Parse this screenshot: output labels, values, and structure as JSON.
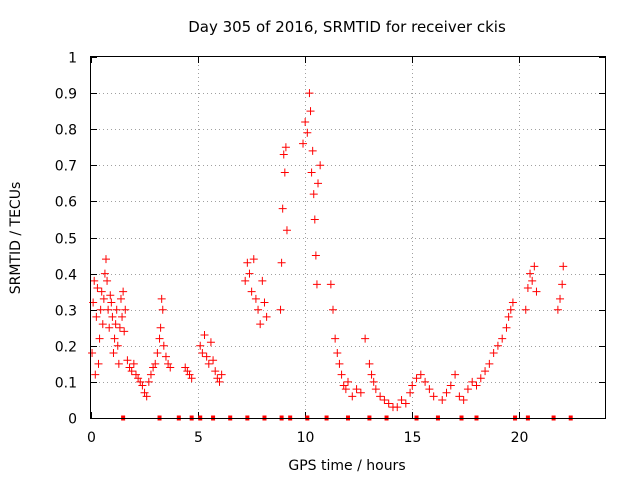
{
  "chart_data": {
    "type": "scatter",
    "title": "Day 305 of 2016, SRMTID for receiver ckis",
    "xlabel": "GPS time / hours",
    "ylabel": "SRMTID / TECUs",
    "xlim": [
      0,
      24
    ],
    "ylim": [
      0,
      1
    ],
    "x_ticks": [
      0,
      5,
      10,
      15,
      20
    ],
    "x_tick_labels": [
      "0",
      "5",
      "10",
      "15",
      "20"
    ],
    "y_ticks": [
      0,
      0.1,
      0.2,
      0.3,
      0.4,
      0.5,
      0.6,
      0.7,
      0.8,
      0.9,
      1
    ],
    "y_tick_labels": [
      "0",
      "0.1",
      "0.2",
      "0.3",
      "0.4",
      "0.5",
      "0.6",
      "0.7",
      "0.8",
      "0.9",
      "1"
    ],
    "grid": true,
    "marker": "+",
    "color": "#ff0000",
    "series": [
      {
        "name": "SRMTID",
        "x": [
          0.05,
          0.1,
          0.15,
          0.2,
          0.25,
          0.3,
          0.35,
          0.4,
          0.45,
          0.5,
          0.55,
          0.6,
          0.65,
          0.7,
          0.75,
          0.8,
          0.85,
          0.9,
          0.95,
          1.0,
          1.05,
          1.1,
          1.15,
          1.2,
          1.25,
          1.3,
          1.35,
          1.4,
          1.45,
          1.5,
          1.55,
          1.6,
          1.7,
          1.8,
          1.9,
          2.0,
          2.1,
          2.2,
          2.3,
          2.4,
          2.5,
          2.6,
          2.7,
          2.8,
          2.9,
          3.0,
          3.1,
          3.2,
          3.25,
          3.3,
          3.35,
          3.4,
          3.5,
          3.6,
          3.7,
          4.4,
          4.5,
          4.6,
          4.7,
          5.1,
          5.2,
          5.3,
          5.4,
          5.5,
          5.6,
          5.7,
          5.8,
          5.9,
          6.0,
          6.1,
          7.2,
          7.3,
          7.4,
          7.5,
          7.6,
          7.7,
          7.8,
          7.9,
          8.0,
          8.1,
          8.2,
          8.85,
          8.9,
          8.95,
          9.0,
          9.05,
          9.1,
          9.15,
          9.9,
          10.0,
          10.1,
          10.2,
          10.25,
          10.3,
          10.35,
          10.4,
          10.45,
          10.5,
          10.55,
          10.6,
          10.7,
          11.2,
          11.3,
          11.4,
          11.5,
          11.6,
          11.7,
          11.8,
          11.9,
          12.0,
          12.2,
          12.4,
          12.6,
          12.8,
          13.0,
          13.1,
          13.2,
          13.3,
          13.5,
          13.7,
          13.9,
          14.1,
          14.3,
          14.5,
          14.7,
          14.9,
          15.0,
          15.2,
          15.4,
          15.6,
          15.8,
          16.0,
          16.4,
          16.6,
          16.8,
          17.0,
          17.2,
          17.4,
          17.6,
          17.8,
          18.0,
          18.2,
          18.4,
          18.6,
          18.8,
          19.0,
          19.2,
          19.4,
          19.5,
          19.6,
          19.7,
          20.3,
          20.4,
          20.5,
          20.6,
          20.7,
          20.8,
          21.8,
          21.9,
          22.0,
          22.05
        ],
        "y": [
          0.18,
          0.32,
          0.38,
          0.12,
          0.28,
          0.36,
          0.15,
          0.22,
          0.3,
          0.35,
          0.26,
          0.33,
          0.4,
          0.44,
          0.38,
          0.3,
          0.25,
          0.34,
          0.32,
          0.28,
          0.18,
          0.22,
          0.26,
          0.3,
          0.2,
          0.15,
          0.25,
          0.33,
          0.28,
          0.35,
          0.24,
          0.3,
          0.16,
          0.14,
          0.13,
          0.15,
          0.12,
          0.11,
          0.1,
          0.09,
          0.07,
          0.06,
          0.1,
          0.12,
          0.14,
          0.15,
          0.18,
          0.22,
          0.25,
          0.33,
          0.3,
          0.2,
          0.17,
          0.15,
          0.14,
          0.14,
          0.13,
          0.12,
          0.11,
          0.2,
          0.18,
          0.23,
          0.17,
          0.15,
          0.21,
          0.16,
          0.13,
          0.11,
          0.1,
          0.12,
          0.38,
          0.43,
          0.4,
          0.35,
          0.44,
          0.33,
          0.3,
          0.26,
          0.38,
          0.32,
          0.28,
          0.3,
          0.43,
          0.58,
          0.73,
          0.68,
          0.75,
          0.52,
          0.76,
          0.82,
          0.79,
          0.9,
          0.85,
          0.68,
          0.74,
          0.62,
          0.55,
          0.45,
          0.37,
          0.65,
          0.7,
          0.37,
          0.3,
          0.22,
          0.18,
          0.15,
          0.12,
          0.09,
          0.08,
          0.1,
          0.06,
          0.08,
          0.07,
          0.22,
          0.15,
          0.12,
          0.1,
          0.08,
          0.06,
          0.05,
          0.04,
          0.03,
          0.03,
          0.05,
          0.04,
          0.07,
          0.09,
          0.11,
          0.12,
          0.1,
          0.08,
          0.06,
          0.05,
          0.07,
          0.09,
          0.12,
          0.06,
          0.05,
          0.08,
          0.1,
          0.09,
          0.11,
          0.13,
          0.15,
          0.18,
          0.2,
          0.22,
          0.25,
          0.28,
          0.3,
          0.32,
          0.3,
          0.36,
          0.4,
          0.38,
          0.42,
          0.35,
          0.3,
          0.33,
          0.37,
          0.42
        ]
      }
    ],
    "gap_marks_y": 0,
    "gap_marks_x": [
      1.5,
      3.2,
      4.1,
      4.7,
      5.1,
      5.7,
      6.5,
      7.3,
      8.1,
      8.9,
      9.3,
      10.1,
      11.0,
      12.0,
      13.0,
      13.8,
      15.2,
      16.2,
      17.3,
      18.0,
      19.8,
      20.4,
      21.6,
      22.4
    ]
  }
}
